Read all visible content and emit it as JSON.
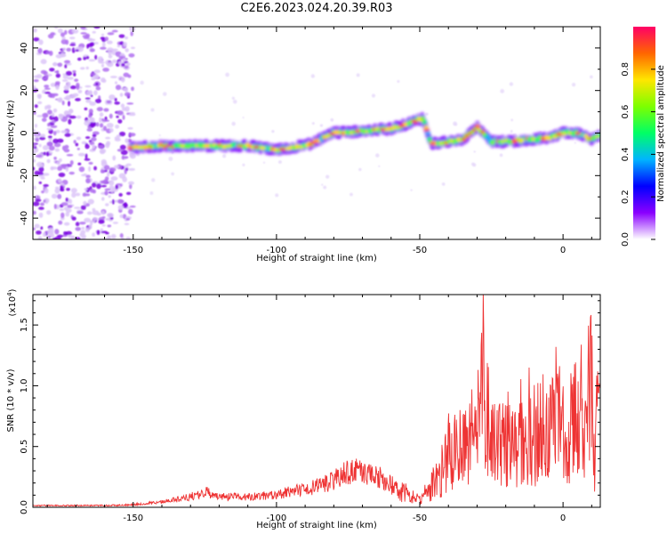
{
  "title": "C2E6.2023.024.20.39.R03",
  "chart_data": [
    {
      "type": "heatmap",
      "xlabel": "Height of straight line (km)",
      "ylabel": "Frequency (Hz)",
      "xlim": [
        -185,
        13
      ],
      "ylim": [
        -50,
        50
      ],
      "xticks": [
        -150,
        -100,
        -50,
        0
      ],
      "yticks": [
        -40,
        -20,
        0,
        20,
        40
      ],
      "colorbar": {
        "label": "Normalized spectral amplitude",
        "range": [
          0,
          1
        ],
        "ticks": [
          "0.0",
          "0.2",
          "0.4",
          "0.6",
          "0.8"
        ],
        "colormap": [
          "#ffffff",
          "#8a00ff",
          "#0000ff",
          "#00b4ff",
          "#00ff66",
          "#7dff00",
          "#ffe600",
          "#ff6600",
          "#ff0066"
        ]
      },
      "trace": {
        "x": [
          -151,
          -140,
          -130,
          -120,
          -110,
          -100,
          -95,
          -88,
          -80,
          -70,
          -60,
          -55,
          -49,
          -46,
          -40,
          -35,
          -30,
          -25,
          -20,
          -10,
          -5,
          0,
          5,
          10,
          13
        ],
        "y": [
          -7,
          -6,
          -6,
          -6,
          -6,
          -8,
          -7,
          -5,
          0,
          1,
          2,
          4,
          7,
          -5,
          -4,
          -3,
          3,
          -4,
          -4,
          -3,
          -2,
          0,
          0,
          -3,
          -1
        ]
      }
    },
    {
      "type": "line",
      "xlabel": "Height of straight line (km)",
      "ylabel": "SNR (10 * v/v)",
      "multiplier": "(x10",
      "multiplier_exp": "4",
      "xlim": [
        -185,
        13
      ],
      "ylim": [
        0,
        1.75
      ],
      "xticks": [
        -150,
        -100,
        -50,
        0
      ],
      "yticks": [
        "0.0",
        "0.5",
        "1.0",
        "1.5"
      ],
      "series": [
        {
          "color": "#ee3333",
          "x": [
            -185,
            -170,
            -160,
            -150,
            -140,
            -130,
            -125,
            -120,
            -110,
            -100,
            -95,
            -90,
            -80,
            -75,
            -70,
            -65,
            -60,
            -55,
            -50,
            -45,
            -40,
            -35,
            -30,
            -28,
            -25,
            -20,
            -15,
            -10,
            -5,
            0,
            5,
            8,
            10,
            11,
            12,
            13
          ],
          "y": [
            0.02,
            0.02,
            0.02,
            0.03,
            0.06,
            0.12,
            0.18,
            0.12,
            0.12,
            0.14,
            0.18,
            0.2,
            0.3,
            0.42,
            0.4,
            0.35,
            0.28,
            0.2,
            0.1,
            0.35,
            0.7,
            0.85,
            0.9,
            1.65,
            0.9,
            0.85,
            0.95,
            1.1,
            1.2,
            1.2,
            1.35,
            1.4,
            1.72,
            0.6,
            1.3,
            1.38
          ]
        }
      ]
    }
  ]
}
